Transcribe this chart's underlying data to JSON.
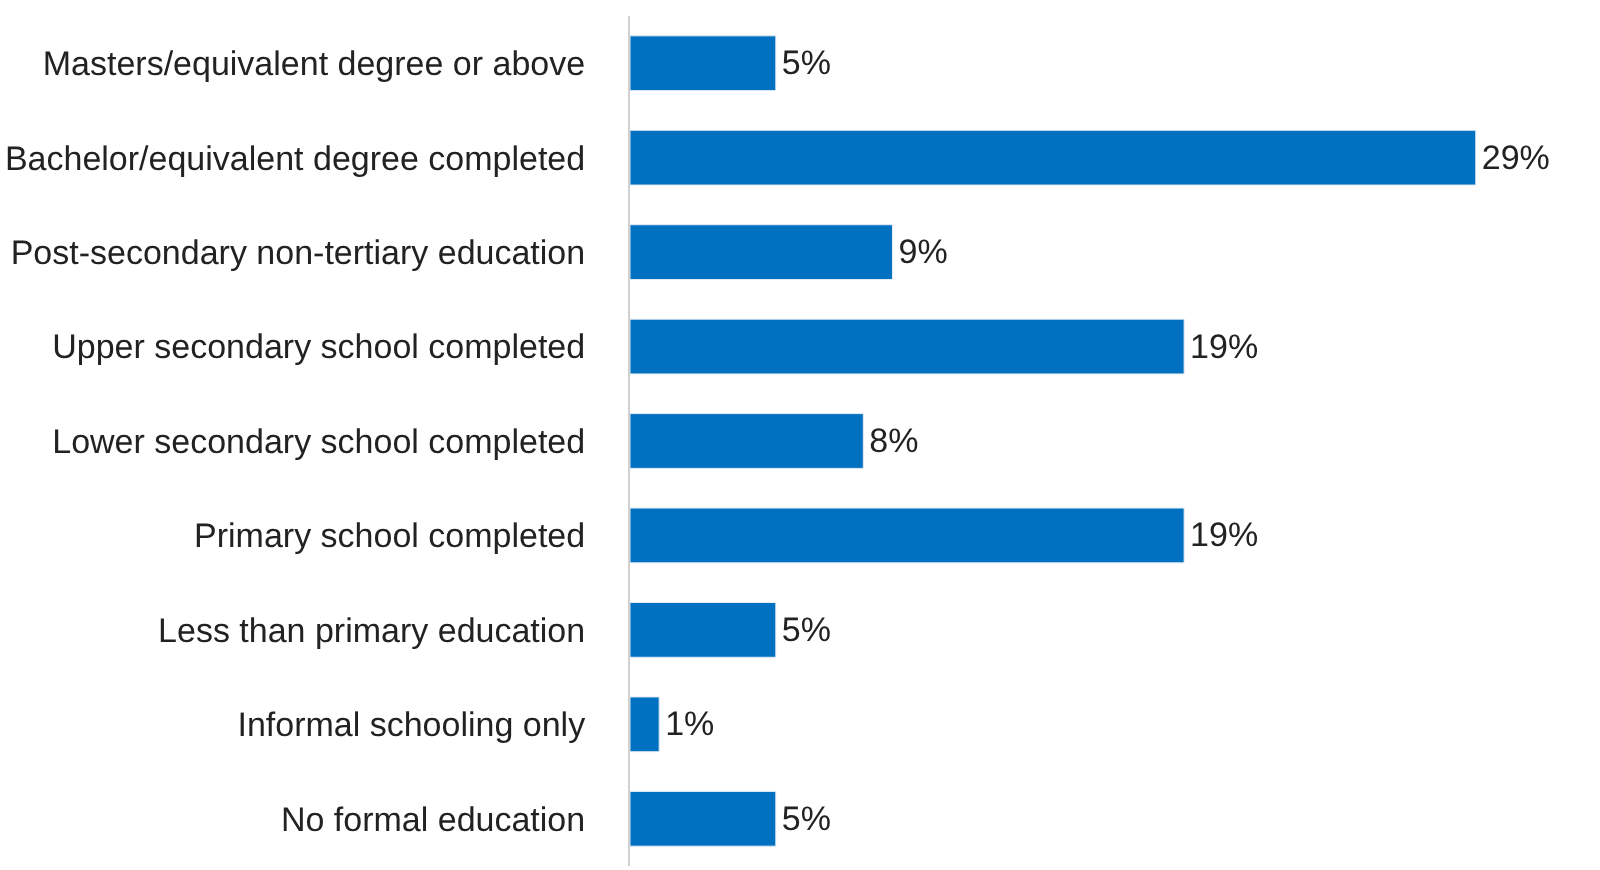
{
  "chart_data": {
    "type": "bar",
    "orientation": "horizontal",
    "categories": [
      "Masters/equivalent degree or above",
      "Bachelor/equivalent degree completed",
      "Post-secondary non-tertiary education",
      "Upper secondary school completed",
      "Lower secondary school completed",
      "Primary school completed",
      "Less than primary education",
      "Informal schooling only",
      "No formal education"
    ],
    "values": [
      5,
      29,
      9,
      19,
      8,
      19,
      5,
      1,
      5
    ],
    "value_labels": [
      "5%",
      "29%",
      "9%",
      "19%",
      "8%",
      "19%",
      "5%",
      "1%",
      "5%"
    ],
    "color": "#0070c0"
  }
}
